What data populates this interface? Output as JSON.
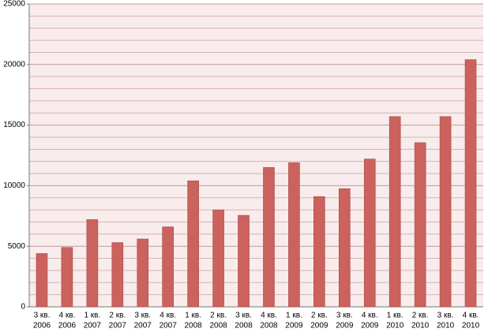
{
  "chart_data": {
    "type": "bar",
    "categories": [
      [
        "3 кв.",
        "2006"
      ],
      [
        "4 кв.",
        "2006"
      ],
      [
        "1 кв.",
        "2007"
      ],
      [
        "2 кв.",
        "2007"
      ],
      [
        "3 кв.",
        "2007"
      ],
      [
        "4 кв.",
        "2007"
      ],
      [
        "1 кв.",
        "2008"
      ],
      [
        "2 кв.",
        "2008"
      ],
      [
        "3 кв.",
        "2008"
      ],
      [
        "4 кв.",
        "2008"
      ],
      [
        "1 кв.",
        "2009"
      ],
      [
        "2 кв.",
        "2009"
      ],
      [
        "3 кв.",
        "2009"
      ],
      [
        "4 кв.",
        "2009"
      ],
      [
        "1 кв.",
        "2010"
      ],
      [
        "2 кв.",
        "2010"
      ],
      [
        "3 кв.",
        "2010"
      ],
      [
        "4 кв.",
        "2010"
      ]
    ],
    "values": [
      4400,
      4900,
      7200,
      5300,
      5600,
      6600,
      10400,
      8000,
      7550,
      11500,
      11900,
      9100,
      9750,
      12200,
      15700,
      13550,
      15700,
      20400
    ],
    "color": "#cb625e",
    "ylim": [
      0,
      25000
    ],
    "yticks": [
      0,
      5000,
      10000,
      15000,
      20000,
      25000
    ],
    "minor_yticks": [
      1000,
      2000,
      3000,
      4000,
      6000,
      7000,
      8000,
      9000,
      11000,
      12000,
      13000,
      14000,
      16000,
      17000,
      18000,
      19000,
      21000,
      22000,
      23000,
      24000
    ],
    "grid": true
  }
}
